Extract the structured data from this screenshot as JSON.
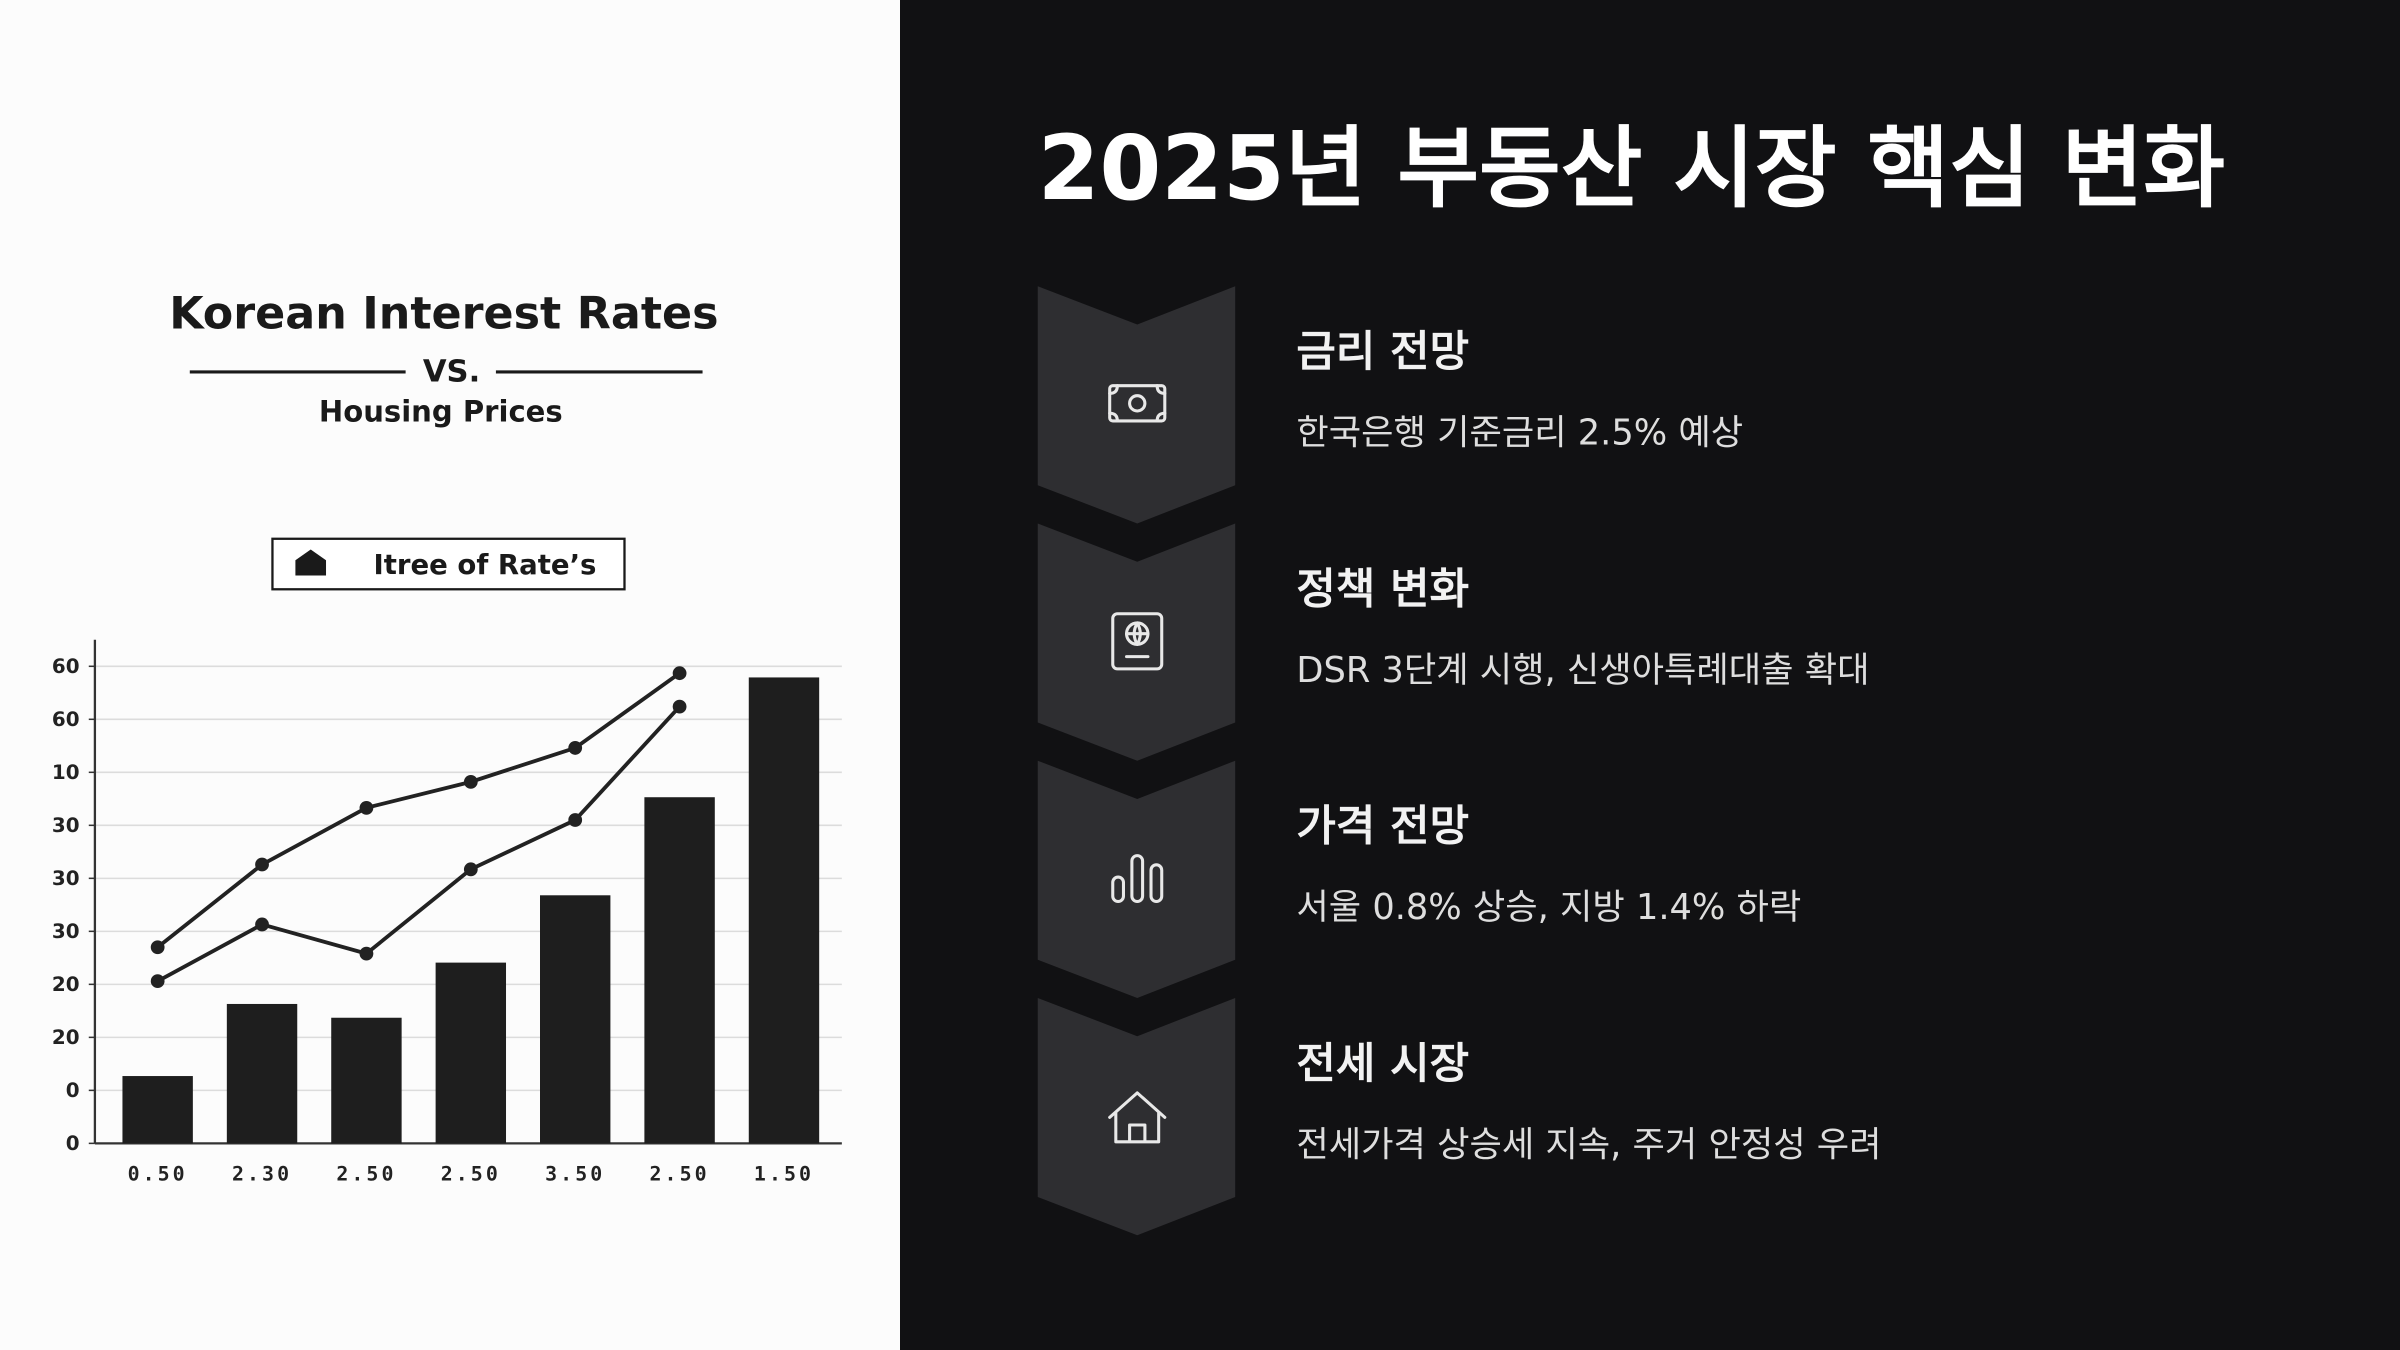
{
  "header": {
    "title": "2025년 부동산 시장 핵심 변화"
  },
  "items": [
    {
      "heading": "금리 전망",
      "text": "한국은행 기준금리 2.5% 예상"
    },
    {
      "heading": "정책 변화",
      "text": "DSR 3단계 시행, 신생아특례대출 확대"
    },
    {
      "heading": "가격 전망",
      "text": "서울 0.8% 상승, 지방 1.4% 하락"
    },
    {
      "heading": "전세 시장",
      "text": "전세가격 상승세 지속, 주거 안정성 우려"
    }
  ],
  "chart_data": {
    "type": "bar",
    "title": "Korean Interest Rates",
    "vs": "VS.",
    "subtitle": "Housing Prices",
    "legend": "Itree of Rate’s",
    "categories": [
      "0.50",
      "2.30",
      "2.50",
      "2.50",
      "3.50",
      "2.50",
      "1.50"
    ],
    "values": [
      1.27,
      2.63,
      2.37,
      3.41,
      4.68,
      6.53,
      8.79
    ],
    "color": "#1e1e1e",
    "lines": [
      {
        "color": "#222222",
        "values": [
          3.7,
          5.26,
          6.33,
          6.82,
          7.46,
          8.87,
          null
        ]
      },
      {
        "color": "#222222",
        "values": [
          3.06,
          4.13,
          3.58,
          5.17,
          6.1,
          8.24,
          null
        ]
      }
    ],
    "ylim": [
      0,
      9.5
    ],
    "yticks": [
      {
        "value": 0,
        "label": "0"
      },
      {
        "value": 1,
        "label": "0"
      },
      {
        "value": 2,
        "label": "20"
      },
      {
        "value": 3,
        "label": "20"
      },
      {
        "value": 4,
        "label": "30"
      },
      {
        "value": 5,
        "label": "30"
      },
      {
        "value": 6,
        "label": "30"
      },
      {
        "value": 7,
        "label": "10"
      },
      {
        "value": 8,
        "label": "60"
      },
      {
        "value": 9,
        "label": "60"
      }
    ],
    "grid": true
  }
}
